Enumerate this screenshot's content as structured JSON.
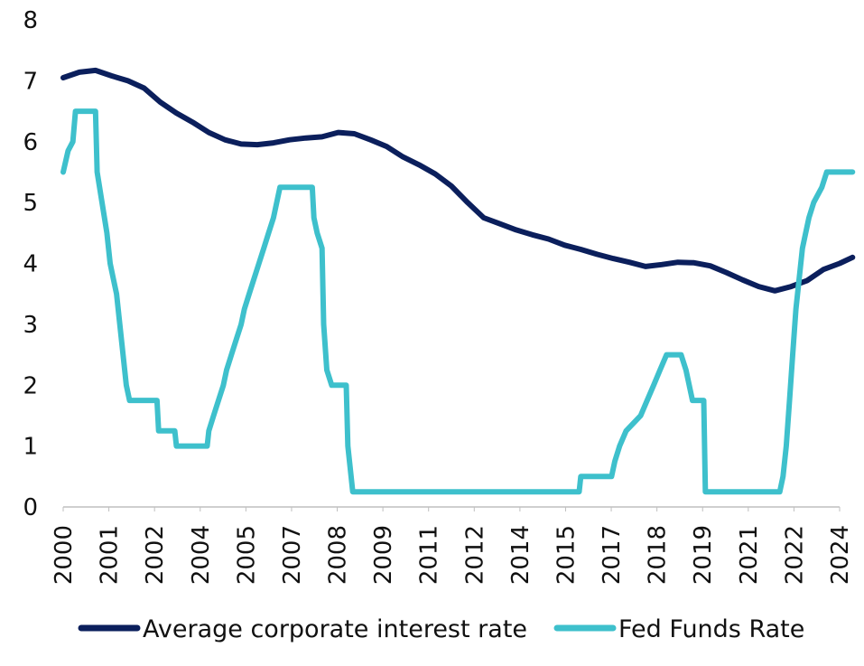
{
  "chart_data": {
    "type": "line",
    "title": "",
    "xlabel": "",
    "ylabel": "",
    "ylim": [
      0,
      8
    ],
    "y_ticks": [
      "0",
      "1",
      "2",
      "3",
      "4",
      "5",
      "6",
      "7",
      "8"
    ],
    "x_range": [
      2000.0,
      2024.0
    ],
    "x_tick_labels": [
      "2000",
      "2001",
      "2002",
      "2004",
      "2005",
      "2007",
      "2008",
      "2009",
      "2011",
      "2012",
      "2014",
      "2015",
      "2017",
      "2018",
      "2019",
      "2021",
      "2022",
      "2024"
    ],
    "grid": false,
    "legend_position": "bottom",
    "series": [
      {
        "name": "Average corporate interest rate",
        "color": "#0b1f5c",
        "points": [
          [
            2000.0,
            7.05
          ],
          [
            2000.5,
            7.14
          ],
          [
            2001.0,
            7.17
          ],
          [
            2001.5,
            7.08
          ],
          [
            2002.0,
            7.0
          ],
          [
            2002.5,
            6.88
          ],
          [
            2003.0,
            6.65
          ],
          [
            2003.5,
            6.47
          ],
          [
            2004.0,
            6.32
          ],
          [
            2004.5,
            6.15
          ],
          [
            2005.0,
            6.03
          ],
          [
            2005.5,
            5.96
          ],
          [
            2006.0,
            5.95
          ],
          [
            2006.5,
            5.98
          ],
          [
            2007.0,
            6.03
          ],
          [
            2007.5,
            6.06
          ],
          [
            2008.0,
            6.08
          ],
          [
            2008.5,
            6.15
          ],
          [
            2009.0,
            6.13
          ],
          [
            2009.5,
            6.03
          ],
          [
            2010.0,
            5.92
          ],
          [
            2010.5,
            5.75
          ],
          [
            2011.0,
            5.62
          ],
          [
            2011.5,
            5.47
          ],
          [
            2012.0,
            5.27
          ],
          [
            2012.5,
            5.0
          ],
          [
            2013.0,
            4.75
          ],
          [
            2013.5,
            4.65
          ],
          [
            2014.0,
            4.55
          ],
          [
            2014.5,
            4.47
          ],
          [
            2015.0,
            4.4
          ],
          [
            2015.5,
            4.3
          ],
          [
            2016.0,
            4.23
          ],
          [
            2016.5,
            4.15
          ],
          [
            2017.0,
            4.08
          ],
          [
            2017.5,
            4.02
          ],
          [
            2018.0,
            3.95
          ],
          [
            2018.5,
            3.98
          ],
          [
            2019.0,
            4.02
          ],
          [
            2019.5,
            4.01
          ],
          [
            2020.0,
            3.96
          ],
          [
            2020.5,
            3.85
          ],
          [
            2021.0,
            3.73
          ],
          [
            2021.5,
            3.62
          ],
          [
            2022.0,
            3.55
          ],
          [
            2022.5,
            3.62
          ],
          [
            2023.0,
            3.72
          ],
          [
            2023.5,
            3.9
          ],
          [
            2024.0,
            4.0
          ],
          [
            2024.4,
            4.1
          ]
        ]
      },
      {
        "name": "Fed Funds Rate",
        "color": "#3ec0cc",
        "points": [
          [
            2000.0,
            5.5
          ],
          [
            2000.15,
            5.85
          ],
          [
            2000.3,
            6.0
          ],
          [
            2000.38,
            6.5
          ],
          [
            2001.0,
            6.5
          ],
          [
            2001.05,
            5.5
          ],
          [
            2001.2,
            5.0
          ],
          [
            2001.35,
            4.5
          ],
          [
            2001.45,
            4.0
          ],
          [
            2001.55,
            3.75
          ],
          [
            2001.65,
            3.5
          ],
          [
            2001.75,
            3.0
          ],
          [
            2001.85,
            2.5
          ],
          [
            2001.95,
            2.0
          ],
          [
            2002.05,
            1.75
          ],
          [
            2002.9,
            1.75
          ],
          [
            2002.95,
            1.25
          ],
          [
            2003.45,
            1.25
          ],
          [
            2003.5,
            1.0
          ],
          [
            2004.45,
            1.0
          ],
          [
            2004.5,
            1.25
          ],
          [
            2004.65,
            1.5
          ],
          [
            2004.8,
            1.75
          ],
          [
            2004.95,
            2.0
          ],
          [
            2005.05,
            2.25
          ],
          [
            2005.2,
            2.5
          ],
          [
            2005.35,
            2.75
          ],
          [
            2005.5,
            3.0
          ],
          [
            2005.6,
            3.25
          ],
          [
            2005.75,
            3.5
          ],
          [
            2005.9,
            3.75
          ],
          [
            2006.05,
            4.0
          ],
          [
            2006.2,
            4.25
          ],
          [
            2006.35,
            4.5
          ],
          [
            2006.5,
            4.75
          ],
          [
            2006.6,
            5.0
          ],
          [
            2006.7,
            5.25
          ],
          [
            2007.7,
            5.25
          ],
          [
            2007.75,
            4.75
          ],
          [
            2007.85,
            4.5
          ],
          [
            2008.0,
            4.25
          ],
          [
            2008.05,
            3.0
          ],
          [
            2008.15,
            2.25
          ],
          [
            2008.3,
            2.0
          ],
          [
            2008.75,
            2.0
          ],
          [
            2008.8,
            1.0
          ],
          [
            2008.95,
            0.25
          ],
          [
            2015.95,
            0.25
          ],
          [
            2016.0,
            0.5
          ],
          [
            2016.95,
            0.5
          ],
          [
            2017.05,
            0.75
          ],
          [
            2017.2,
            1.0
          ],
          [
            2017.4,
            1.25
          ],
          [
            2017.85,
            1.5
          ],
          [
            2018.05,
            1.75
          ],
          [
            2018.25,
            2.0
          ],
          [
            2018.45,
            2.25
          ],
          [
            2018.65,
            2.5
          ],
          [
            2019.1,
            2.5
          ],
          [
            2019.25,
            2.25
          ],
          [
            2019.45,
            1.75
          ],
          [
            2019.8,
            1.75
          ],
          [
            2019.85,
            0.25
          ],
          [
            2022.15,
            0.25
          ],
          [
            2022.25,
            0.5
          ],
          [
            2022.35,
            1.0
          ],
          [
            2022.45,
            1.75
          ],
          [
            2022.55,
            2.5
          ],
          [
            2022.65,
            3.25
          ],
          [
            2022.75,
            3.75
          ],
          [
            2022.85,
            4.25
          ],
          [
            2022.95,
            4.5
          ],
          [
            2023.05,
            4.75
          ],
          [
            2023.2,
            5.0
          ],
          [
            2023.45,
            5.25
          ],
          [
            2023.6,
            5.5
          ],
          [
            2024.4,
            5.5
          ]
        ]
      }
    ]
  }
}
